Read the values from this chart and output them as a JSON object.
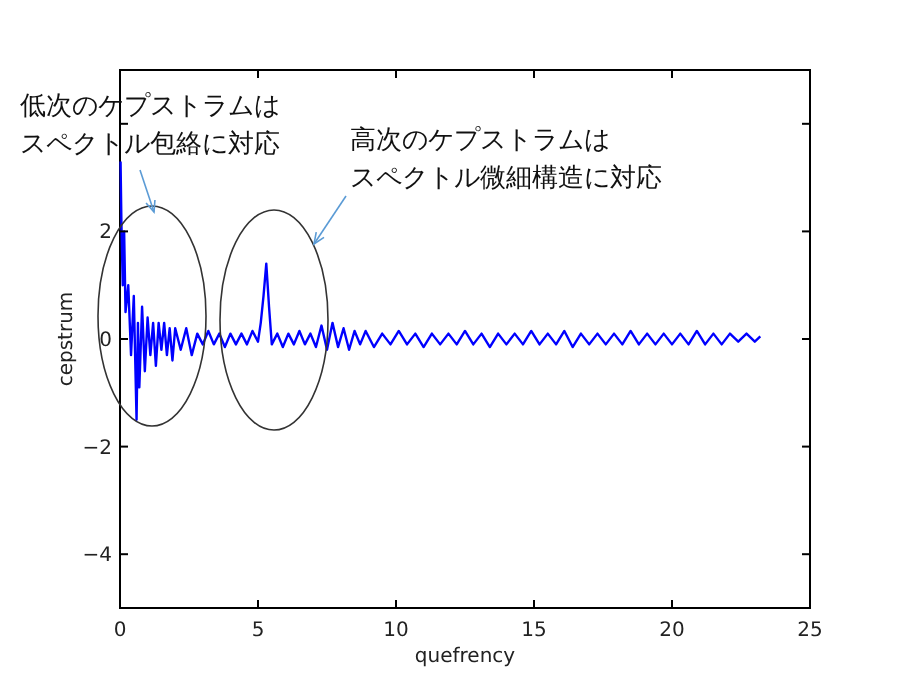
{
  "chart_data": {
    "type": "line",
    "xlabel": "quefrency",
    "ylabel": "cepstrum",
    "xlim": [
      0,
      25
    ],
    "ylim": [
      -5,
      5
    ],
    "xticks": [
      0,
      5,
      10,
      15,
      20,
      25
    ],
    "yticks": [
      -4,
      -2,
      0,
      2,
      {
        "value": 4,
        "label": null
      }
    ],
    "grid": false,
    "marker": "none",
    "line_style": "solid",
    "annotations": [
      "低次のケプストラムはスペクトル包絡に対応",
      "高次のケプストラムはスペクトル微細構造に対応"
    ],
    "series": [
      {
        "color": "#0000ff",
        "x": [
          0.02,
          0.05,
          0.1,
          0.15,
          0.2,
          0.3,
          0.4,
          0.5,
          0.6,
          0.65,
          0.7,
          0.8,
          0.9,
          1.0,
          1.1,
          1.2,
          1.3,
          1.4,
          1.5,
          1.6,
          1.7,
          1.8,
          1.9,
          2.0,
          2.2,
          2.4,
          2.6,
          2.8,
          3.0,
          3.2,
          3.4,
          3.6,
          3.8,
          4.0,
          4.2,
          4.4,
          4.6,
          4.8,
          5.0,
          5.1,
          5.2,
          5.3,
          5.4,
          5.5,
          5.7,
          5.9,
          6.1,
          6.3,
          6.5,
          6.7,
          6.9,
          7.1,
          7.3,
          7.5,
          7.7,
          7.9,
          8.1,
          8.3,
          8.5,
          8.7,
          8.9,
          9.2,
          9.5,
          9.8,
          10.1,
          10.4,
          10.7,
          11.0,
          11.3,
          11.6,
          11.9,
          12.2,
          12.5,
          12.8,
          13.1,
          13.4,
          13.7,
          14.0,
          14.3,
          14.6,
          14.9,
          15.2,
          15.5,
          15.8,
          16.1,
          16.4,
          16.7,
          17.0,
          17.3,
          17.6,
          17.9,
          18.2,
          18.5,
          18.8,
          19.1,
          19.4,
          19.7,
          20.0,
          20.3,
          20.6,
          20.9,
          21.2,
          21.5,
          21.8,
          22.1,
          22.4,
          22.7,
          23.0,
          23.2
        ],
        "values": [
          3.3,
          2.2,
          1.0,
          2.0,
          0.5,
          1.0,
          -0.3,
          0.8,
          -1.5,
          0.3,
          -0.9,
          0.6,
          -0.6,
          0.4,
          -0.3,
          0.3,
          -0.5,
          0.3,
          -0.2,
          0.3,
          -0.3,
          0.2,
          -0.4,
          0.2,
          -0.2,
          0.2,
          -0.3,
          0.1,
          -0.1,
          0.15,
          -0.1,
          0.1,
          -0.15,
          0.1,
          -0.1,
          0.1,
          -0.1,
          0.15,
          -0.05,
          0.3,
          0.8,
          1.4,
          0.6,
          -0.1,
          0.1,
          -0.15,
          0.1,
          -0.1,
          0.15,
          -0.1,
          0.1,
          -0.15,
          0.25,
          -0.2,
          0.3,
          -0.15,
          0.2,
          -0.2,
          0.15,
          -0.1,
          0.15,
          -0.15,
          0.1,
          -0.1,
          0.15,
          -0.1,
          0.1,
          -0.15,
          0.1,
          -0.1,
          0.1,
          -0.1,
          0.15,
          -0.1,
          0.1,
          -0.15,
          0.1,
          -0.1,
          0.1,
          -0.1,
          0.15,
          -0.1,
          0.1,
          -0.1,
          0.15,
          -0.15,
          0.1,
          -0.1,
          0.1,
          -0.1,
          0.1,
          -0.1,
          0.15,
          -0.1,
          0.1,
          -0.1,
          0.1,
          -0.1,
          0.1,
          -0.1,
          0.15,
          -0.1,
          0.1,
          -0.1,
          0.1,
          -0.05,
          0.1,
          -0.05,
          0.05
        ]
      }
    ]
  }
}
